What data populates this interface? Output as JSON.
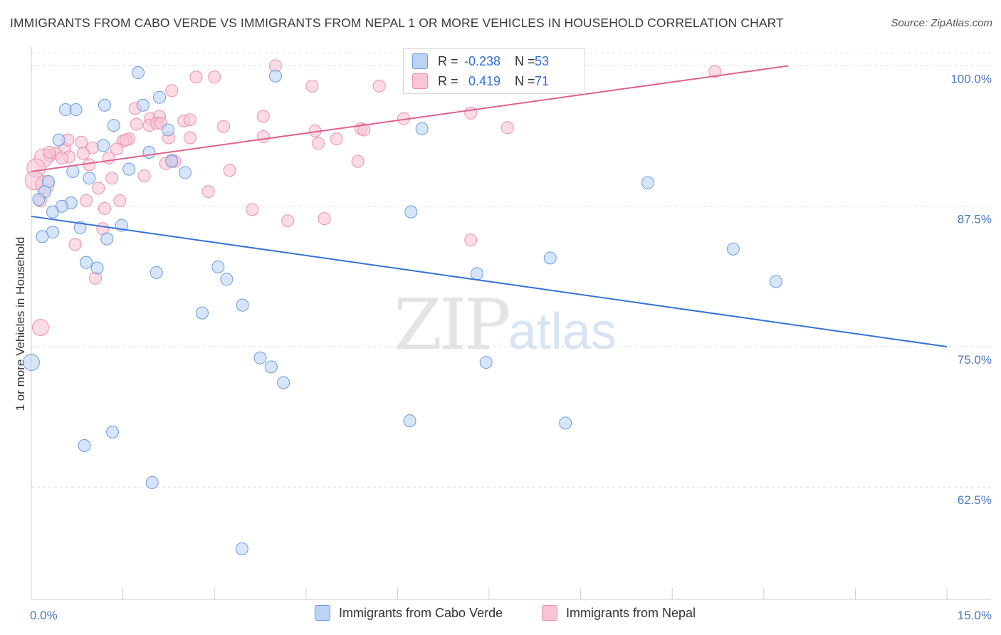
{
  "title": "IMMIGRANTS FROM CABO VERDE VS IMMIGRANTS FROM NEPAL 1 OR MORE VEHICLES IN HOUSEHOLD CORRELATION CHART",
  "source": "Source: ZipAtlas.com",
  "watermark": {
    "zip": "ZIP",
    "atlas": "atlas"
  },
  "colors": {
    "blue_fill": "#bcd3f4",
    "blue_stroke": "#6b9be0",
    "blue_line": "#3573d4",
    "pink_fill": "#f9c4d4",
    "pink_stroke": "#ec8fae",
    "pink_line": "#e0628c",
    "tick_text": "#4a78c2",
    "grid": "#dddddd"
  },
  "legend": {
    "r_label": "R =",
    "n_label": "N =",
    "blue": {
      "r": "-0.238",
      "n": "53"
    },
    "pink": {
      "r": "0.419",
      "n": "71"
    }
  },
  "chart_data": {
    "type": "scatter",
    "title": "IMMIGRANTS FROM CABO VERDE VS IMMIGRANTS FROM NEPAL 1 OR MORE VEHICLES IN HOUSEHOLD CORRELATION CHART",
    "xlabel": "",
    "ylabel": "1 or more Vehicles in Household",
    "xlim": [
      0,
      15
    ],
    "ylim": [
      52.5,
      101.3
    ],
    "x_tick_labels": [
      "0.0%",
      "15.0%"
    ],
    "y_ticks": [
      100,
      87.5,
      75,
      62.5
    ],
    "y_tick_labels": [
      "100.0%",
      "87.5%",
      "75.0%",
      "62.5%"
    ],
    "legend_position": "bottom-center",
    "series": [
      {
        "name": "Immigrants from Cabo Verde",
        "color": "blue",
        "trend": {
          "x": [
            0,
            15
          ],
          "y": [
            86.6,
            75.0
          ]
        },
        "points": [
          {
            "x": 1.75,
            "y": 99.4
          },
          {
            "x": 4.0,
            "y": 99.1
          },
          {
            "x": 1.2,
            "y": 96.5
          },
          {
            "x": 1.83,
            "y": 96.5
          },
          {
            "x": 0.56,
            "y": 96.1
          },
          {
            "x": 0.73,
            "y": 96.1
          },
          {
            "x": 2.1,
            "y": 97.2
          },
          {
            "x": 1.35,
            "y": 94.7
          },
          {
            "x": 2.24,
            "y": 94.3
          },
          {
            "x": 6.4,
            "y": 94.4
          },
          {
            "x": 0.45,
            "y": 93.4
          },
          {
            "x": 1.18,
            "y": 92.9
          },
          {
            "x": 1.93,
            "y": 92.3
          },
          {
            "x": 1.6,
            "y": 90.8
          },
          {
            "x": 0.68,
            "y": 90.6
          },
          {
            "x": 2.52,
            "y": 90.5
          },
          {
            "x": 0.95,
            "y": 90.0
          },
          {
            "x": 2.3,
            "y": 91.5
          },
          {
            "x": 10.1,
            "y": 89.6
          },
          {
            "x": 0.28,
            "y": 89.7
          },
          {
            "x": 0.22,
            "y": 88.8
          },
          {
            "x": 0.12,
            "y": 88.1
          },
          {
            "x": 0.65,
            "y": 87.8
          },
          {
            "x": 0.5,
            "y": 87.5
          },
          {
            "x": 0.35,
            "y": 87.0
          },
          {
            "x": 6.22,
            "y": 87.0
          },
          {
            "x": 1.48,
            "y": 85.8
          },
          {
            "x": 0.8,
            "y": 85.6
          },
          {
            "x": 0.35,
            "y": 85.2
          },
          {
            "x": 0.18,
            "y": 84.8
          },
          {
            "x": 1.24,
            "y": 84.6
          },
          {
            "x": 11.5,
            "y": 83.7
          },
          {
            "x": 8.5,
            "y": 82.9
          },
          {
            "x": 0.9,
            "y": 82.5
          },
          {
            "x": 1.08,
            "y": 82.0
          },
          {
            "x": 3.06,
            "y": 82.1
          },
          {
            "x": 2.05,
            "y": 81.6
          },
          {
            "x": 7.3,
            "y": 81.5
          },
          {
            "x": 3.2,
            "y": 81.0
          },
          {
            "x": 12.2,
            "y": 80.8
          },
          {
            "x": 3.46,
            "y": 78.7
          },
          {
            "x": 2.8,
            "y": 78.0
          },
          {
            "x": 3.75,
            "y": 74.0
          },
          {
            "x": 0.0,
            "y": 73.6
          },
          {
            "x": 7.45,
            "y": 73.6
          },
          {
            "x": 3.93,
            "y": 73.2
          },
          {
            "x": 4.13,
            "y": 71.8
          },
          {
            "x": 6.2,
            "y": 68.4
          },
          {
            "x": 8.75,
            "y": 68.2
          },
          {
            "x": 1.33,
            "y": 67.4
          },
          {
            "x": 0.87,
            "y": 66.2
          },
          {
            "x": 1.98,
            "y": 62.9
          },
          {
            "x": 3.45,
            "y": 57.0
          }
        ]
      },
      {
        "name": "Immigrants from Nepal",
        "color": "pink",
        "trend": {
          "x": [
            0,
            12.4
          ],
          "y": [
            90.6,
            100.0
          ]
        },
        "points": [
          {
            "x": 4.0,
            "y": 100.0
          },
          {
            "x": 6.6,
            "y": 100.0
          },
          {
            "x": 11.2,
            "y": 99.5
          },
          {
            "x": 2.7,
            "y": 99.0
          },
          {
            "x": 5.7,
            "y": 98.2
          },
          {
            "x": 4.6,
            "y": 98.2
          },
          {
            "x": 2.3,
            "y": 97.8
          },
          {
            "x": 1.7,
            "y": 96.2
          },
          {
            "x": 7.2,
            "y": 95.8
          },
          {
            "x": 3.8,
            "y": 95.5
          },
          {
            "x": 1.95,
            "y": 95.3
          },
          {
            "x": 2.5,
            "y": 95.1
          },
          {
            "x": 2.6,
            "y": 95.2
          },
          {
            "x": 2.1,
            "y": 95.5
          },
          {
            "x": 6.1,
            "y": 95.3
          },
          {
            "x": 1.72,
            "y": 94.8
          },
          {
            "x": 1.93,
            "y": 94.7
          },
          {
            "x": 2.05,
            "y": 94.9
          },
          {
            "x": 3.15,
            "y": 94.6
          },
          {
            "x": 7.8,
            "y": 94.5
          },
          {
            "x": 5.4,
            "y": 94.4
          },
          {
            "x": 4.65,
            "y": 94.2
          },
          {
            "x": 5.45,
            "y": 94.3
          },
          {
            "x": 2.25,
            "y": 93.6
          },
          {
            "x": 3.8,
            "y": 93.7
          },
          {
            "x": 2.6,
            "y": 93.6
          },
          {
            "x": 1.6,
            "y": 93.5
          },
          {
            "x": 5.0,
            "y": 93.5
          },
          {
            "x": 1.5,
            "y": 93.3
          },
          {
            "x": 4.7,
            "y": 93.1
          },
          {
            "x": 0.82,
            "y": 93.2
          },
          {
            "x": 1.0,
            "y": 92.7
          },
          {
            "x": 1.4,
            "y": 92.6
          },
          {
            "x": 0.55,
            "y": 92.6
          },
          {
            "x": 0.4,
            "y": 92.2
          },
          {
            "x": 0.3,
            "y": 92.0
          },
          {
            "x": 0.2,
            "y": 91.8
          },
          {
            "x": 0.62,
            "y": 91.9
          },
          {
            "x": 0.85,
            "y": 92.2
          },
          {
            "x": 0.5,
            "y": 91.8
          },
          {
            "x": 1.27,
            "y": 91.8
          },
          {
            "x": 5.35,
            "y": 91.5
          },
          {
            "x": 2.35,
            "y": 91.5
          },
          {
            "x": 2.2,
            "y": 91.3
          },
          {
            "x": 0.95,
            "y": 91.2
          },
          {
            "x": 0.08,
            "y": 90.9
          },
          {
            "x": 3.25,
            "y": 90.7
          },
          {
            "x": 0.05,
            "y": 89.8
          },
          {
            "x": 1.32,
            "y": 90.0
          },
          {
            "x": 1.85,
            "y": 90.2
          },
          {
            "x": 0.22,
            "y": 89.4
          },
          {
            "x": 1.1,
            "y": 89.1
          },
          {
            "x": 2.9,
            "y": 88.8
          },
          {
            "x": 0.9,
            "y": 88.0
          },
          {
            "x": 0.15,
            "y": 88.0
          },
          {
            "x": 1.45,
            "y": 88.0
          },
          {
            "x": 1.2,
            "y": 87.3
          },
          {
            "x": 3.62,
            "y": 87.2
          },
          {
            "x": 4.8,
            "y": 86.4
          },
          {
            "x": 4.2,
            "y": 86.2
          },
          {
            "x": 1.17,
            "y": 85.5
          },
          {
            "x": 7.2,
            "y": 84.5
          },
          {
            "x": 0.72,
            "y": 84.1
          },
          {
            "x": 1.05,
            "y": 81.1
          },
          {
            "x": 0.15,
            "y": 76.7
          },
          {
            "x": 2.3,
            "y": 91.6
          },
          {
            "x": 2.12,
            "y": 94.9
          },
          {
            "x": 0.6,
            "y": 93.4
          },
          {
            "x": 1.55,
            "y": 93.4
          },
          {
            "x": 3.0,
            "y": 99.0
          },
          {
            "x": 0.3,
            "y": 92.3
          }
        ]
      }
    ]
  },
  "bottom_legend": [
    {
      "label": "Immigrants from Cabo Verde",
      "color": "blue"
    },
    {
      "label": "Immigrants from Nepal",
      "color": "pink"
    }
  ]
}
